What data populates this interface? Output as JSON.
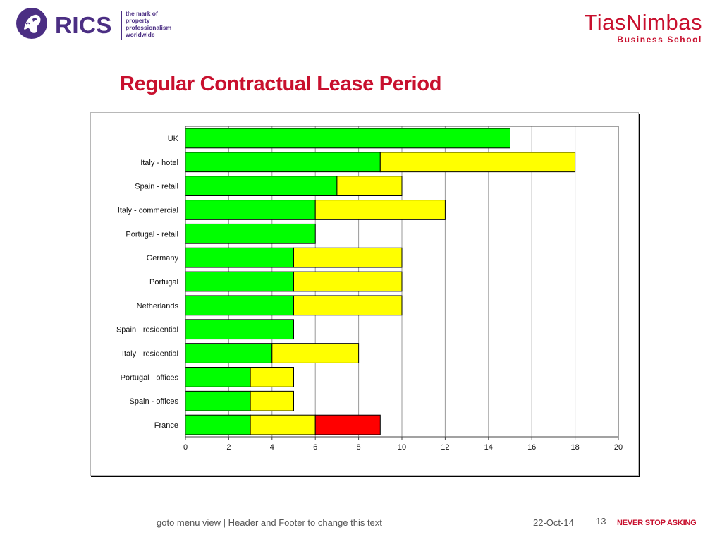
{
  "header": {
    "rics_logo": {
      "wordmark": "RICS",
      "tagline": "the mark of\nproperty\nprofessionalism\nworldwide",
      "icon": "rics-lion-emblem-icon",
      "color": "#4b2e83"
    },
    "school_logo": {
      "name": "TiasNimbas",
      "subtitle": "Business School",
      "color": "#c8102e"
    }
  },
  "page": {
    "title": "Regular Contractual Lease Period",
    "title_color": "#c8102e"
  },
  "chart_data": {
    "type": "bar",
    "orientation": "horizontal",
    "stacked": true,
    "categories": [
      "UK",
      "Italy - hotel",
      "Spain - retail",
      "Italy - commercial",
      "Portugal - retail",
      "Germany",
      "Portugal",
      "Netherlands",
      "Spain - residential",
      "Italy - residential",
      "Portugal - offices",
      "Spain - offices",
      "France"
    ],
    "series": [
      {
        "color": "#00ff00",
        "values": [
          15,
          9,
          7,
          6,
          6,
          5,
          5,
          5,
          5,
          4,
          3,
          3,
          3
        ]
      },
      {
        "color": "#ffff00",
        "values": [
          0,
          9,
          3,
          6,
          0,
          5,
          5,
          5,
          0,
          4,
          2,
          2,
          3
        ]
      },
      {
        "color": "#ff0000",
        "values": [
          0,
          0,
          0,
          0,
          0,
          0,
          0,
          0,
          0,
          0,
          0,
          0,
          3
        ]
      }
    ],
    "xlim": [
      0,
      20
    ],
    "x_ticks": [
      0,
      2,
      4,
      6,
      8,
      10,
      12,
      14,
      16,
      18,
      20
    ],
    "title": "",
    "xlabel": "",
    "ylabel": "",
    "grid": "vertical",
    "legend": "none"
  },
  "footer": {
    "text": "goto menu view | Header and Footer to change this text",
    "date": "22-Oct-14",
    "page_number": "13",
    "slogan": "NEVER STOP ASKING"
  }
}
